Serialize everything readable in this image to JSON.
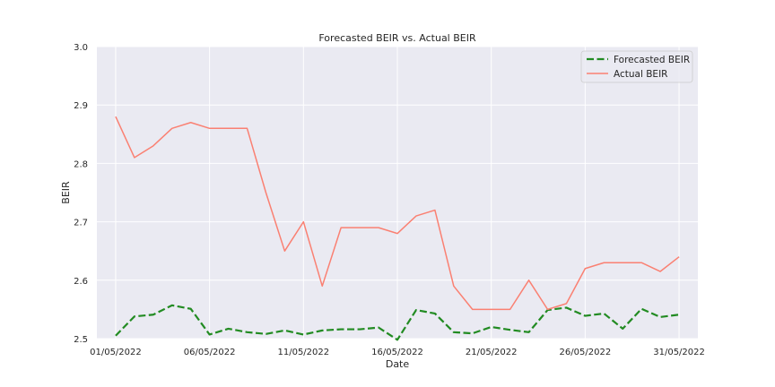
{
  "chart_data": {
    "type": "line",
    "title": "Forecasted BEIR vs. Actual BEIR",
    "xlabel": "Date",
    "ylabel": "BEIR",
    "ylim": [
      2.5,
      3.0
    ],
    "xlim": [
      "30/04/2022",
      "01/06/2022"
    ],
    "grid": true,
    "legend_position": "top-right",
    "colors": {
      "background": "#EAEAF2",
      "forecast": "#228B22",
      "actual": "#FA8072",
      "grid": "#FFFFFF",
      "text": "#262626"
    },
    "x": [
      "01/05/2022",
      "02/05/2022",
      "03/05/2022",
      "04/05/2022",
      "05/05/2022",
      "06/05/2022",
      "07/05/2022",
      "08/05/2022",
      "09/05/2022",
      "10/05/2022",
      "11/05/2022",
      "12/05/2022",
      "13/05/2022",
      "14/05/2022",
      "15/05/2022",
      "16/05/2022",
      "17/05/2022",
      "18/05/2022",
      "19/05/2022",
      "20/05/2022",
      "21/05/2022",
      "22/05/2022",
      "23/05/2022",
      "24/05/2022",
      "25/05/2022",
      "26/05/2022",
      "27/05/2022",
      "28/05/2022",
      "29/05/2022",
      "30/05/2022",
      "31/05/2022"
    ],
    "x_ticks": [
      "01/05/2022",
      "06/05/2022",
      "11/05/2022",
      "16/05/2022",
      "21/05/2022",
      "26/05/2022",
      "31/05/2022"
    ],
    "y_ticks": [
      "2.5",
      "2.6",
      "2.7",
      "2.8",
      "2.9",
      "3.0"
    ],
    "series": [
      {
        "name": "Forecasted BEIR",
        "style": "dashed",
        "values": [
          2.505,
          2.538,
          2.541,
          2.557,
          2.551,
          2.507,
          2.517,
          2.511,
          2.508,
          2.514,
          2.507,
          2.514,
          2.516,
          2.516,
          2.519,
          2.498,
          2.549,
          2.543,
          2.511,
          2.509,
          2.52,
          2.515,
          2.511,
          2.549,
          2.553,
          2.539,
          2.543,
          2.517,
          2.551,
          2.537,
          2.541
        ]
      },
      {
        "name": "Actual BEIR",
        "style": "solid",
        "values": [
          2.88,
          2.81,
          2.83,
          2.86,
          2.87,
          2.86,
          2.86,
          2.86,
          2.75,
          2.65,
          2.7,
          2.59,
          2.69,
          2.69,
          2.69,
          2.68,
          2.71,
          2.72,
          2.59,
          2.55,
          2.55,
          2.55,
          2.6,
          2.55,
          2.56,
          2.62,
          2.63,
          2.63,
          2.63,
          2.615,
          2.64
        ]
      }
    ]
  }
}
